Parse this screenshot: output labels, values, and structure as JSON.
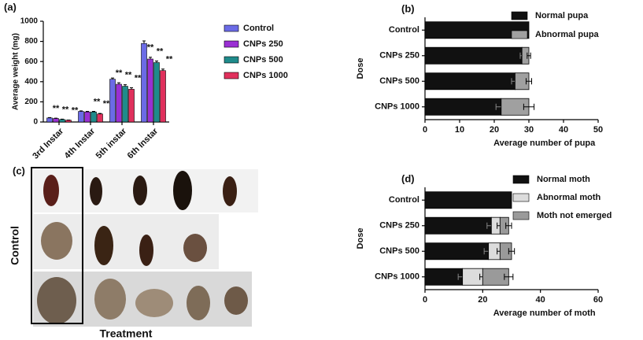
{
  "chart_data": [
    {
      "type": "bar",
      "panel_label": "(a)",
      "y_label": "Average weight (mg)",
      "categories": [
        "3rd Instar",
        "4th Instar",
        "5th instar",
        "6th Instar"
      ],
      "ylim": [
        0,
        1000
      ],
      "yticks": [
        0,
        200,
        400,
        600,
        800,
        1000
      ],
      "series": [
        {
          "name": "Control",
          "color": "#6b6be6",
          "values": [
            40,
            105,
            425,
            780
          ],
          "errors": [
            4,
            5,
            12,
            25
          ]
        },
        {
          "name": "CNPs 250",
          "color": "#9a2fd3",
          "values": [
            35,
            100,
            375,
            625
          ],
          "errors": [
            3,
            5,
            15,
            18
          ],
          "significance": [
            "**",
            null,
            "**",
            "**"
          ]
        },
        {
          "name": "CNPs 500",
          "color": "#1f8b8b",
          "values": [
            25,
            100,
            355,
            590
          ],
          "errors": [
            3,
            5,
            15,
            15
          ],
          "significance": [
            "**",
            "**",
            "**",
            "**"
          ]
        },
        {
          "name": "CNPs 1000",
          "color": "#e0305c",
          "values": [
            18,
            80,
            325,
            510
          ],
          "errors": [
            2,
            5,
            15,
            15
          ],
          "significance": [
            "**",
            "**",
            "**",
            "**"
          ]
        }
      ]
    },
    {
      "type": "stacked_barh",
      "panel_label": "(b)",
      "y_label": "Dose",
      "x_label": "Average number of pupa",
      "categories": [
        "Control",
        "CNPs 250",
        "CNPs 500",
        "CNPs 1000"
      ],
      "xlim": [
        0,
        50
      ],
      "xticks": [
        0,
        10,
        20,
        30,
        40,
        50
      ],
      "series": [
        {
          "name": "Normal pupa",
          "color": "#111111",
          "values": [
            30,
            28,
            26,
            22
          ],
          "errors": [
            0,
            0.5,
            1,
            1.5
          ]
        },
        {
          "name": "Abnormal pupa",
          "color": "#a0a0a0",
          "values": [
            0,
            2,
            4,
            8
          ],
          "errors": [
            0,
            0.5,
            0.8,
            1.5
          ]
        }
      ]
    },
    {
      "type": "stacked_barh",
      "panel_label": "(d)",
      "y_label": "Dose",
      "x_label": "Average number of moth",
      "categories": [
        "Control",
        "CNPs 250",
        "CNPs 500",
        "CNPs 1000"
      ],
      "xlim": [
        0,
        60
      ],
      "xticks": [
        0,
        20,
        40,
        60
      ],
      "series": [
        {
          "name": "Normal moth",
          "color": "#111111",
          "values": [
            30,
            23,
            22,
            13
          ],
          "errors": [
            0,
            1.5,
            1.5,
            1.5
          ]
        },
        {
          "name": "Abnormal moth",
          "color": "#dcdcdc",
          "values": [
            0,
            3,
            4,
            7
          ],
          "errors": [
            0,
            1,
            1,
            1
          ]
        },
        {
          "name": "Moth not emerged",
          "color": "#9a9a9a",
          "values": [
            0,
            3,
            4,
            9
          ],
          "errors": [
            0,
            1,
            1,
            1.5
          ]
        }
      ]
    }
  ],
  "photo_panel": {
    "panel_label": "(c)",
    "row_label": "Control",
    "column_label": "Treatment"
  }
}
